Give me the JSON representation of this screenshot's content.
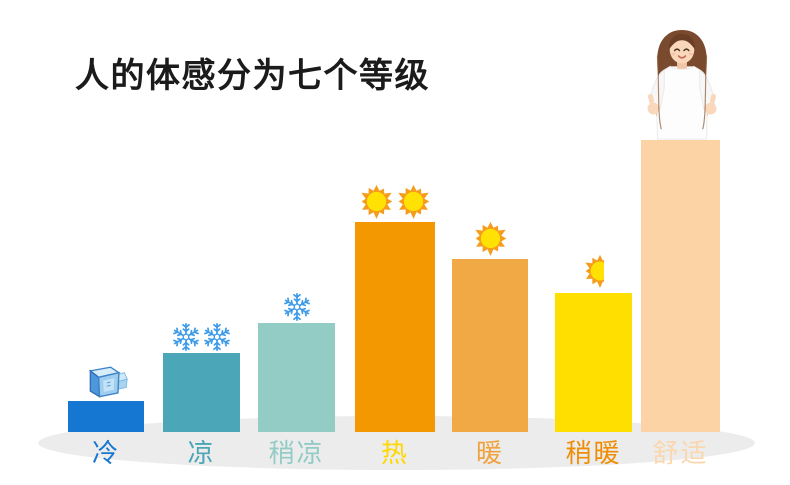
{
  "page": {
    "title": "人的体感分为七个等级"
  },
  "chart_data": {
    "type": "bar",
    "title": "人的体感分为七个等级",
    "categories": [
      "冷",
      "凉",
      "稍凉",
      "热",
      "暖",
      "稍暖",
      "舒适"
    ],
    "values": [
      31,
      79,
      109,
      210,
      173,
      139,
      292
    ],
    "value_unit": "relative bar height (px, no numeric axis shown)",
    "xlabel": "",
    "ylabel": "",
    "legend": false,
    "axes_visible": false,
    "grid": false,
    "shadow_color": "#ECECEC",
    "title_color": "#1B1B1B",
    "bars": [
      {
        "id": "cold",
        "label": "冷",
        "value": 31,
        "bar_color": "#1577D2",
        "label_color": "#1577D2",
        "icons": [
          "ice-cube"
        ]
      },
      {
        "id": "cool",
        "label": "凉",
        "value": 79,
        "bar_color": "#4BA7B7",
        "label_color": "#4BA7B7",
        "icons": [
          "snowflake",
          "snowflake"
        ]
      },
      {
        "id": "slightly-cool",
        "label": "稍凉",
        "value": 109,
        "bar_color": "#92CCC5",
        "label_color": "#92CCC5",
        "icons": [
          "snowflake"
        ]
      },
      {
        "id": "hot",
        "label": "热",
        "value": 210,
        "bar_color": "#F39800",
        "label_color": "#FFD800",
        "icons": [
          "sun",
          "sun"
        ]
      },
      {
        "id": "warm",
        "label": "暖",
        "value": 173,
        "bar_color": "#F0A945",
        "label_color": "#F0A23F",
        "icons": [
          "sun"
        ]
      },
      {
        "id": "slightly-warm",
        "label": "稍暖",
        "value": 139,
        "bar_color": "#FFDF00",
        "label_color": "#EE8D04",
        "icons": [
          "sun-half"
        ]
      },
      {
        "id": "comfortable",
        "label": "舒适",
        "value": 292,
        "bar_color": "#FBD3A4",
        "label_color": "#FAD7AE",
        "icons": [
          "woman-thumbs-up"
        ]
      }
    ],
    "icon_colors": {
      "snowflake": "#3D9BE9",
      "sun_rays": "#F59D1A",
      "sun_core": "#FFE204",
      "ice_cube_light": "#D7EDFA",
      "ice_cube_dark": "#4E97DB"
    }
  }
}
